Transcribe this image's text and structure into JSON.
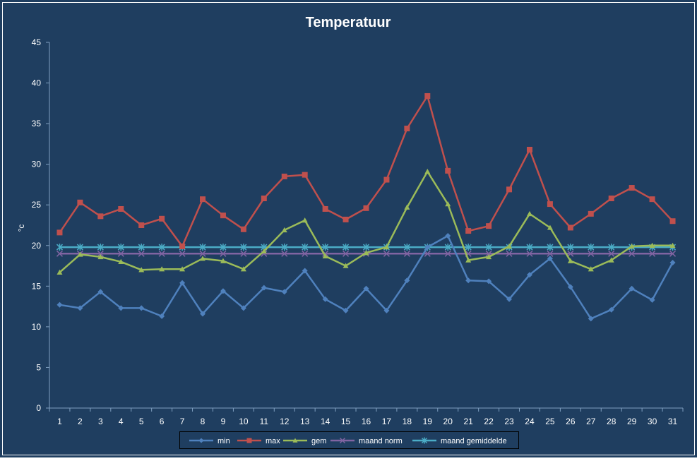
{
  "chart_data": {
    "type": "line",
    "title": "Temperatuur",
    "xlabel": "",
    "ylabel": "°c",
    "ylim": [
      0,
      45
    ],
    "yticks": [
      0,
      5,
      10,
      15,
      20,
      25,
      30,
      35,
      40,
      45
    ],
    "grid": false,
    "legend_position": "bottom",
    "categories": [
      "1",
      "2",
      "3",
      "4",
      "5",
      "6",
      "7",
      "8",
      "9",
      "10",
      "11",
      "12",
      "13",
      "14",
      "15",
      "16",
      "17",
      "18",
      "19",
      "20",
      "21",
      "22",
      "23",
      "24",
      "25",
      "26",
      "27",
      "28",
      "29",
      "30",
      "31"
    ],
    "series": [
      {
        "name": "min",
        "color": "#4f81bd",
        "marker": "diamond",
        "values": [
          12.7,
          12.3,
          14.3,
          12.3,
          12.3,
          11.3,
          15.4,
          11.6,
          14.4,
          12.3,
          14.8,
          14.3,
          16.9,
          13.4,
          12.0,
          14.7,
          12.0,
          15.7,
          19.8,
          21.2,
          15.7,
          15.6,
          13.4,
          16.4,
          18.4,
          14.9,
          11.0,
          12.1,
          14.7,
          13.3,
          17.9
        ]
      },
      {
        "name": "max",
        "color": "#c0504d",
        "marker": "square",
        "values": [
          21.6,
          25.3,
          23.6,
          24.5,
          22.5,
          23.3,
          19.9,
          25.7,
          23.7,
          22.0,
          25.8,
          28.5,
          28.7,
          24.5,
          23.2,
          24.6,
          28.1,
          34.4,
          38.4,
          29.2,
          21.8,
          22.4,
          26.9,
          31.8,
          25.1,
          22.2,
          23.9,
          25.8,
          27.1,
          25.7,
          23.0
        ]
      },
      {
        "name": "gem",
        "color": "#9bbb59",
        "marker": "triangle",
        "values": [
          16.7,
          18.9,
          18.6,
          18.0,
          17.0,
          17.1,
          17.1,
          18.4,
          18.1,
          17.1,
          19.3,
          21.9,
          23.1,
          18.7,
          17.5,
          19.1,
          19.8,
          24.7,
          29.1,
          25.1,
          18.2,
          18.6,
          19.9,
          23.9,
          22.2,
          18.1,
          17.1,
          18.2,
          19.9,
          20.0,
          20.0
        ]
      },
      {
        "name": "maand norm",
        "color": "#8064a2",
        "marker": "x",
        "values": [
          19.0,
          19.0,
          19.0,
          19.0,
          19.0,
          19.0,
          19.0,
          19.0,
          19.0,
          19.0,
          19.0,
          19.0,
          19.0,
          19.0,
          19.0,
          19.0,
          19.0,
          19.0,
          19.0,
          19.0,
          19.0,
          19.0,
          19.0,
          19.0,
          19.0,
          19.0,
          19.0,
          19.0,
          19.0,
          19.0,
          19.0
        ]
      },
      {
        "name": "maand gemiddelde",
        "color": "#4bacc6",
        "marker": "star",
        "values": [
          19.8,
          19.8,
          19.8,
          19.8,
          19.8,
          19.8,
          19.8,
          19.8,
          19.8,
          19.8,
          19.8,
          19.8,
          19.8,
          19.8,
          19.8,
          19.8,
          19.8,
          19.8,
          19.8,
          19.8,
          19.8,
          19.8,
          19.8,
          19.8,
          19.8,
          19.8,
          19.8,
          19.8,
          19.8,
          19.8,
          19.8
        ]
      }
    ]
  },
  "colors": {
    "background": "#1f3e60",
    "frame": "#ffffff",
    "axis": "#7f9fc0",
    "text": "#ffffff"
  }
}
